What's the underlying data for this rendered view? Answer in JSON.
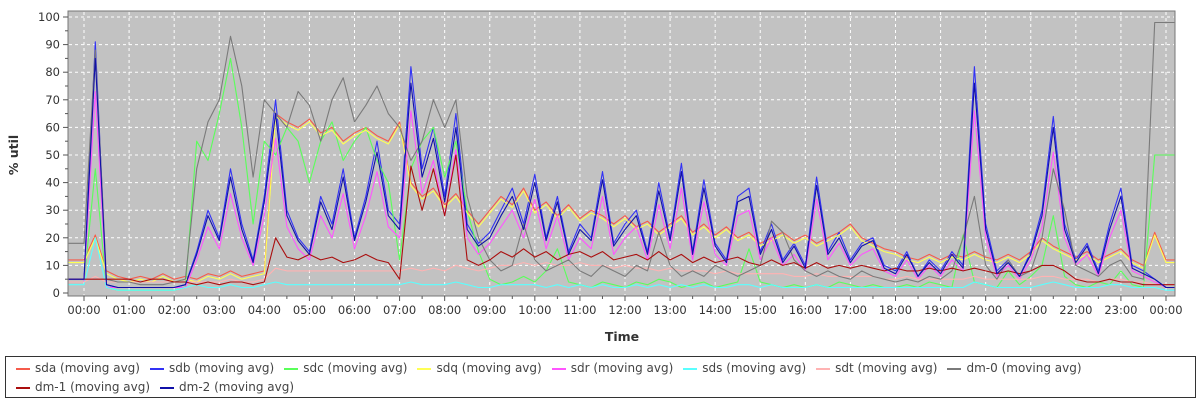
{
  "chart_data": {
    "type": "line",
    "title": "",
    "xlabel": "Time",
    "ylabel": "% util",
    "ylim": [
      0,
      100
    ],
    "y_ticks": [
      0,
      10,
      20,
      30,
      40,
      50,
      60,
      70,
      80,
      90,
      100
    ],
    "x_tick_labels": [
      "00:00",
      "01:00",
      "02:00",
      "03:00",
      "04:00",
      "05:00",
      "06:00",
      "07:00",
      "08:00",
      "09:00",
      "10:00",
      "11:00",
      "12:00",
      "13:00",
      "14:00",
      "15:00",
      "16:00",
      "17:00",
      "18:00",
      "19:00",
      "20:00",
      "21:00",
      "22:00",
      "23:00",
      "00:00"
    ],
    "x_start": 0,
    "x_step": 0.25,
    "grid": "white-dashed",
    "plot_bg": "#c2c2c2",
    "legend_position": "bottom",
    "series": [
      {
        "id": "sda",
        "name": "sda (moving avg)",
        "color": "#f55b4b",
        "values": [
          12,
          21,
          8,
          6,
          5,
          6,
          5,
          7,
          5,
          6,
          5,
          7,
          6,
          8,
          6,
          7,
          8,
          65,
          62,
          60,
          63,
          58,
          60,
          55,
          58,
          60,
          57,
          55,
          62,
          40,
          35,
          38,
          32,
          36,
          30,
          25,
          30,
          35,
          32,
          38,
          30,
          33,
          28,
          32,
          27,
          30,
          28,
          25,
          28,
          24,
          26,
          22,
          25,
          28,
          22,
          25,
          21,
          24,
          20,
          22,
          18,
          20,
          22,
          19,
          21,
          18,
          20,
          22,
          25,
          20,
          18,
          16,
          15,
          13,
          12,
          14,
          12,
          14,
          13,
          15,
          13,
          12,
          14,
          12,
          15,
          20,
          17,
          15,
          13,
          15,
          12,
          14,
          16,
          12,
          10,
          22,
          12
        ]
      },
      {
        "id": "sdb",
        "name": "sdb (moving avg)",
        "color": "#3232f5",
        "values": [
          5,
          91,
          3,
          2,
          2,
          2,
          2,
          2,
          2,
          3,
          15,
          30,
          20,
          45,
          25,
          12,
          35,
          70,
          30,
          20,
          15,
          35,
          25,
          45,
          20,
          35,
          55,
          30,
          25,
          82,
          45,
          60,
          35,
          65,
          25,
          18,
          22,
          30,
          38,
          25,
          43,
          20,
          35,
          15,
          25,
          20,
          44,
          18,
          25,
          30,
          15,
          40,
          20,
          47,
          15,
          41,
          18,
          12,
          35,
          38,
          15,
          25,
          12,
          18,
          10,
          42,
          15,
          22,
          12,
          18,
          20,
          10,
          8,
          15,
          6,
          12,
          8,
          15,
          10,
          82,
          25,
          8,
          12,
          6,
          15,
          30,
          64,
          25,
          12,
          18,
          8,
          25,
          38,
          10,
          8,
          5,
          2
        ]
      },
      {
        "id": "sdc",
        "name": "sdc (moving avg)",
        "color": "#5aff5a",
        "values": [
          4,
          45,
          2,
          1,
          1,
          1,
          1,
          1,
          1,
          2,
          55,
          48,
          65,
          85,
          60,
          25,
          55,
          50,
          60,
          55,
          40,
          55,
          62,
          48,
          55,
          60,
          48,
          40,
          12,
          45,
          55,
          60,
          42,
          55,
          30,
          15,
          5,
          3,
          4,
          6,
          4,
          8,
          16,
          4,
          3,
          2,
          4,
          3,
          2,
          4,
          3,
          5,
          4,
          2,
          3,
          4,
          2,
          3,
          4,
          16,
          4,
          3,
          2,
          3,
          2,
          3,
          2,
          4,
          3,
          2,
          3,
          2,
          2,
          3,
          2,
          4,
          3,
          2,
          21,
          4,
          3,
          2,
          8,
          3,
          6,
          10,
          28,
          6,
          3,
          2,
          4,
          3,
          8,
          3,
          2,
          50,
          50
        ]
      },
      {
        "id": "sdq",
        "name": "sdq (moving avg)",
        "color": "#ffff55",
        "values": [
          11,
          20,
          7,
          5,
          4,
          5,
          4,
          6,
          4,
          5,
          4,
          6,
          5,
          7,
          5,
          6,
          7,
          64,
          61,
          59,
          62,
          57,
          59,
          54,
          57,
          59,
          56,
          54,
          61,
          39,
          34,
          37,
          31,
          35,
          29,
          24,
          29,
          34,
          31,
          37,
          29,
          32,
          27,
          31,
          26,
          29,
          27,
          24,
          27,
          23,
          25,
          21,
          24,
          27,
          21,
          24,
          20,
          23,
          19,
          21,
          17,
          19,
          21,
          18,
          20,
          17,
          19,
          21,
          24,
          19,
          17,
          15,
          14,
          12,
          11,
          13,
          11,
          13,
          12,
          14,
          12,
          11,
          13,
          11,
          14,
          19,
          16,
          14,
          12,
          14,
          11,
          13,
          15,
          11,
          9,
          21,
          11
        ]
      },
      {
        "id": "sdr",
        "name": "sdr (moving avg)",
        "color": "#ff55ff",
        "values": [
          4,
          73,
          2,
          2,
          2,
          2,
          2,
          2,
          2,
          2,
          12,
          24,
          16,
          36,
          20,
          10,
          28,
          56,
          24,
          16,
          12,
          28,
          20,
          36,
          16,
          28,
          44,
          24,
          20,
          66,
          36,
          48,
          28,
          52,
          20,
          14,
          18,
          24,
          30,
          20,
          34,
          16,
          28,
          12,
          20,
          16,
          35,
          14,
          20,
          24,
          12,
          32,
          16,
          38,
          12,
          33,
          14,
          10,
          28,
          30,
          12,
          20,
          10,
          14,
          8,
          34,
          12,
          18,
          10,
          14,
          16,
          8,
          6,
          12,
          5,
          10,
          6,
          12,
          8,
          66,
          20,
          6,
          10,
          5,
          12,
          24,
          51,
          20,
          10,
          14,
          6,
          20,
          30,
          8,
          6,
          4,
          2
        ]
      },
      {
        "id": "sds",
        "name": "sds (moving avg)",
        "color": "#5affff",
        "values": [
          3,
          20,
          2,
          1,
          1,
          1,
          1,
          1,
          1,
          2,
          3,
          2,
          2,
          3,
          2,
          2,
          3,
          4,
          3,
          3,
          3,
          3,
          3,
          3,
          3,
          3,
          3,
          3,
          3,
          4,
          3,
          3,
          3,
          4,
          3,
          2,
          2,
          3,
          3,
          3,
          3,
          2,
          3,
          2,
          3,
          2,
          3,
          2,
          2,
          3,
          2,
          3,
          2,
          3,
          2,
          3,
          2,
          2,
          3,
          3,
          2,
          3,
          2,
          2,
          2,
          3,
          2,
          2,
          2,
          2,
          2,
          2,
          2,
          2,
          2,
          2,
          2,
          2,
          2,
          4,
          3,
          2,
          2,
          2,
          2,
          3,
          4,
          3,
          2,
          2,
          2,
          3,
          3,
          2,
          2,
          2,
          1
        ]
      },
      {
        "id": "sdt",
        "name": "sdt (moving avg)",
        "color": "#ffb3b3",
        "values": [
          4,
          6,
          4,
          4,
          4,
          4,
          4,
          4,
          4,
          4,
          4,
          4,
          4,
          5,
          4,
          4,
          5,
          9,
          8,
          8,
          8,
          8,
          8,
          8,
          8,
          8,
          8,
          8,
          8,
          9,
          8,
          9,
          8,
          10,
          9,
          8,
          9,
          10,
          10,
          11,
          10,
          11,
          10,
          10,
          11,
          10,
          10,
          9,
          10,
          9,
          9,
          8,
          9,
          8,
          8,
          8,
          7,
          8,
          7,
          7,
          7,
          7,
          7,
          6,
          6,
          7,
          6,
          6,
          6,
          6,
          6,
          5,
          5,
          6,
          5,
          5,
          5,
          5,
          5,
          6,
          5,
          5,
          5,
          5,
          5,
          6,
          6,
          5,
          5,
          5,
          4,
          5,
          5,
          4,
          4,
          3,
          3
        ]
      },
      {
        "id": "dm-0",
        "name": "dm-0 (moving avg)",
        "color": "#7a7a7a",
        "values": [
          18,
          88,
          5,
          4,
          4,
          3,
          3,
          3,
          4,
          5,
          45,
          62,
          70,
          93,
          75,
          42,
          70,
          65,
          60,
          73,
          68,
          55,
          70,
          78,
          62,
          68,
          75,
          65,
          60,
          48,
          55,
          70,
          60,
          70,
          35,
          20,
          12,
          8,
          10,
          25,
          12,
          8,
          10,
          12,
          8,
          6,
          10,
          8,
          6,
          10,
          8,
          22,
          10,
          6,
          8,
          6,
          10,
          8,
          6,
          8,
          10,
          26,
          22,
          12,
          8,
          6,
          8,
          6,
          5,
          8,
          6,
          5,
          4,
          5,
          4,
          6,
          5,
          8,
          20,
          35,
          10,
          5,
          12,
          6,
          8,
          20,
          45,
          30,
          10,
          8,
          6,
          10,
          12,
          6,
          5,
          98,
          98
        ]
      },
      {
        "id": "dm-1",
        "name": "dm-1 (moving avg)",
        "color": "#aa0e0e",
        "values": [
          5,
          5,
          5,
          5,
          5,
          4,
          5,
          5,
          4,
          4,
          3,
          4,
          3,
          4,
          4,
          3,
          4,
          20,
          13,
          12,
          14,
          12,
          13,
          11,
          12,
          14,
          12,
          11,
          5,
          46,
          30,
          45,
          28,
          50,
          12,
          10,
          12,
          15,
          13,
          16,
          13,
          15,
          12,
          14,
          15,
          13,
          15,
          12,
          13,
          14,
          12,
          15,
          12,
          14,
          11,
          13,
          11,
          12,
          13,
          11,
          10,
          12,
          10,
          11,
          9,
          11,
          9,
          10,
          9,
          10,
          9,
          8,
          9,
          8,
          8,
          9,
          8,
          9,
          8,
          9,
          8,
          7,
          8,
          7,
          8,
          10,
          10,
          8,
          5,
          4,
          4,
          5,
          4,
          4,
          3,
          3,
          3
        ]
      },
      {
        "id": "dm-2",
        "name": "dm-2 (moving avg)",
        "color": "#1010a8",
        "values": [
          5,
          85,
          3,
          2,
          2,
          2,
          2,
          2,
          2,
          3,
          14,
          28,
          19,
          42,
          23,
          11,
          33,
          65,
          28,
          19,
          14,
          33,
          23,
          42,
          19,
          33,
          51,
          28,
          23,
          76,
          42,
          56,
          33,
          60,
          23,
          17,
          20,
          28,
          35,
          23,
          40,
          19,
          33,
          14,
          23,
          19,
          41,
          17,
          23,
          28,
          14,
          37,
          19,
          44,
          14,
          38,
          17,
          11,
          33,
          35,
          14,
          23,
          11,
          17,
          9,
          39,
          14,
          20,
          11,
          17,
          19,
          9,
          7,
          14,
          6,
          11,
          7,
          14,
          9,
          76,
          23,
          7,
          11,
          6,
          14,
          28,
          60,
          23,
          11,
          17,
          7,
          23,
          35,
          9,
          7,
          5,
          2
        ]
      }
    ]
  }
}
